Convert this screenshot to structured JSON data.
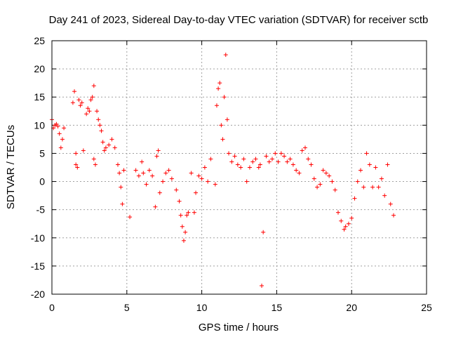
{
  "chart_data": {
    "type": "scatter",
    "title": "Day 241 of 2023, Sidereal Day-to-day VTEC variation (SDTVAR) for receiver sctb",
    "xlabel": "GPS time / hours",
    "ylabel": "SDTVAR / TECUs",
    "xlim": [
      0,
      25
    ],
    "ylim": [
      -20,
      25
    ],
    "xticks": [
      0,
      5,
      10,
      15,
      20,
      25
    ],
    "yticks": [
      -20,
      -15,
      -10,
      -5,
      0,
      5,
      10,
      15,
      20,
      25
    ],
    "xtick_labels": [
      "0",
      "5",
      "10",
      "15",
      "20",
      "25"
    ],
    "ytick_labels": [
      "-20",
      "-15",
      "-10",
      "-5",
      "0",
      "5",
      "10",
      "15",
      "20",
      "25"
    ],
    "grid": true,
    "marker": "+",
    "color": "#ff0000",
    "series": [
      {
        "name": "SDTVAR",
        "x": [
          0.0,
          0.1,
          0.2,
          0.3,
          0.4,
          0.5,
          0.6,
          0.7,
          0.8,
          1.4,
          1.5,
          1.6,
          1.6,
          1.7,
          1.8,
          1.9,
          2.0,
          2.1,
          2.3,
          2.4,
          2.5,
          2.6,
          2.7,
          2.8,
          2.8,
          2.9,
          3.0,
          3.1,
          3.2,
          3.3,
          3.4,
          3.5,
          3.6,
          3.8,
          4.0,
          4.2,
          4.4,
          4.5,
          4.6,
          4.7,
          4.8,
          5.2,
          5.6,
          5.8,
          6.0,
          6.1,
          6.3,
          6.5,
          6.7,
          6.9,
          7.0,
          7.1,
          7.2,
          7.4,
          7.6,
          7.8,
          8.0,
          8.3,
          8.5,
          8.6,
          8.7,
          8.8,
          8.9,
          9.0,
          9.1,
          9.3,
          9.5,
          9.6,
          9.8,
          10.0,
          10.2,
          10.4,
          10.6,
          10.9,
          11.0,
          11.1,
          11.2,
          11.3,
          11.4,
          11.5,
          11.6,
          11.7,
          11.8,
          12.0,
          12.2,
          12.4,
          12.6,
          12.8,
          13.0,
          13.2,
          13.4,
          13.6,
          13.8,
          13.9,
          14.0,
          14.1,
          14.3,
          14.5,
          14.7,
          14.9,
          15.1,
          15.3,
          15.5,
          15.7,
          15.9,
          16.1,
          16.3,
          16.5,
          16.7,
          16.9,
          17.1,
          17.3,
          17.5,
          17.7,
          17.9,
          18.1,
          18.3,
          18.5,
          18.7,
          18.9,
          19.1,
          19.3,
          19.5,
          19.6,
          19.8,
          20.0,
          20.2,
          20.4,
          20.6,
          20.8,
          21.0,
          21.2,
          21.4,
          21.6,
          21.8,
          22.0,
          22.2,
          22.4,
          22.6,
          22.8
        ],
        "y": [
          11.0,
          9.5,
          10.0,
          10.2,
          9.8,
          8.5,
          6.0,
          7.5,
          9.5,
          14.0,
          16.0,
          5.0,
          3.0,
          2.5,
          14.5,
          13.5,
          14.0,
          5.5,
          12.0,
          13.0,
          12.5,
          14.5,
          15.0,
          17.0,
          4.0,
          3.0,
          12.5,
          11.0,
          10.0,
          9.0,
          7.0,
          5.5,
          6.0,
          6.5,
          7.5,
          6.0,
          3.0,
          1.5,
          -1.0,
          -4.0,
          2.0,
          -6.3,
          2.0,
          1.0,
          3.5,
          1.5,
          -0.5,
          2.0,
          1.0,
          -4.5,
          4.5,
          5.5,
          -2.0,
          0.0,
          1.5,
          2.0,
          0.5,
          -1.5,
          -3.5,
          -6.0,
          -8.0,
          -10.5,
          -9.0,
          -6.0,
          -5.5,
          1.5,
          -5.5,
          -2.0,
          1.0,
          0.5,
          2.5,
          0.0,
          4.0,
          -0.5,
          13.5,
          16.5,
          17.5,
          10.0,
          7.5,
          15.0,
          22.5,
          11.0,
          5.0,
          3.5,
          4.5,
          3.0,
          2.5,
          4.0,
          0.0,
          2.5,
          3.5,
          4.0,
          2.5,
          3.0,
          -18.5,
          -9.0,
          4.5,
          3.5,
          4.0,
          5.0,
          3.5,
          5.0,
          4.5,
          3.5,
          4.0,
          3.0,
          2.0,
          1.5,
          5.5,
          6.0,
          4.0,
          3.0,
          0.5,
          -1.0,
          -0.5,
          2.0,
          1.5,
          1.0,
          0.0,
          -1.5,
          -5.5,
          -7.0,
          -8.5,
          -8.0,
          -7.5,
          -6.5,
          -3.0,
          0.0,
          2.0,
          -1.0,
          5.0,
          3.0,
          -1.0,
          2.5,
          -1.0,
          0.5,
          -2.5,
          3.0,
          -4.0,
          -6.0
        ]
      }
    ]
  }
}
